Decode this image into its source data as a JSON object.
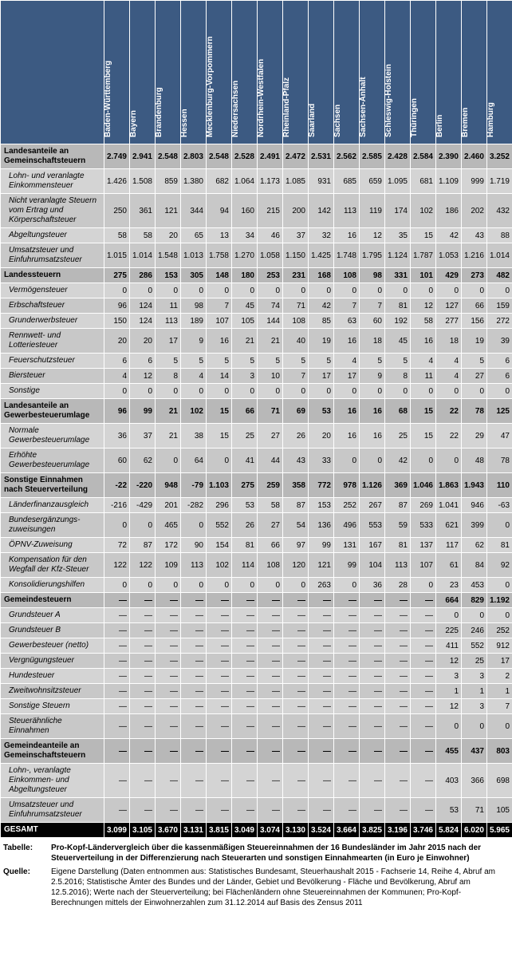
{
  "colors": {
    "header_bg": "#3c5a82",
    "header_fg": "#ffffff",
    "section_bg": "#b8b8b8",
    "detail_bg": "#d4d4d4",
    "alt_bg": "#c8c8c8",
    "total_bg": "#000000",
    "total_fg": "#ffffff",
    "border": "#ffffff"
  },
  "columns": [
    "Baden-Württemberg",
    "Bayern",
    "Brandenburg",
    "Hessen",
    "Mecklenburg-Vorpommern",
    "Niedersachsen",
    "Nordrhein-Westfalen",
    "Rheinland-Pfalz",
    "Saarland",
    "Sachsen",
    "Sachsen-Anhalt",
    "Schleswig-Holstein",
    "Thüringen",
    "Berlin",
    "Bremen",
    "Hamburg"
  ],
  "rows": [
    {
      "type": "section",
      "label": "Landesanteile an Gemeinschaftsteuern",
      "vals": [
        "2.749",
        "2.941",
        "2.548",
        "2.803",
        "2.548",
        "2.528",
        "2.491",
        "2.472",
        "2.531",
        "2.562",
        "2.585",
        "2.428",
        "2.584",
        "2.390",
        "2.460",
        "3.252"
      ]
    },
    {
      "type": "detail",
      "indent": true,
      "label": "Lohn- und veranlagte Einkommensteuer",
      "vals": [
        "1.426",
        "1.508",
        "859",
        "1.380",
        "682",
        "1.064",
        "1.173",
        "1.085",
        "931",
        "685",
        "659",
        "1.095",
        "681",
        "1.109",
        "999",
        "1.719"
      ]
    },
    {
      "type": "detail",
      "indent": true,
      "label": "Nicht veranlagte Steuern vom Ertrag und Körperschaftsteuer",
      "vals": [
        "250",
        "361",
        "121",
        "344",
        "94",
        "160",
        "215",
        "200",
        "142",
        "113",
        "119",
        "174",
        "102",
        "186",
        "202",
        "432"
      ]
    },
    {
      "type": "detail",
      "indent": true,
      "label": "Abgeltungsteuer",
      "vals": [
        "58",
        "58",
        "20",
        "65",
        "13",
        "34",
        "46",
        "37",
        "32",
        "16",
        "12",
        "35",
        "15",
        "42",
        "43",
        "88"
      ]
    },
    {
      "type": "detail",
      "indent": true,
      "label": "Umsatzsteuer und Einfuhrumsatzsteuer",
      "vals": [
        "1.015",
        "1.014",
        "1.548",
        "1.013",
        "1.758",
        "1.270",
        "1.058",
        "1.150",
        "1.425",
        "1.748",
        "1.795",
        "1.124",
        "1.787",
        "1.053",
        "1.216",
        "1.014"
      ]
    },
    {
      "type": "section",
      "label": "Landessteuern",
      "vals": [
        "275",
        "286",
        "153",
        "305",
        "148",
        "180",
        "253",
        "231",
        "168",
        "108",
        "98",
        "331",
        "101",
        "429",
        "273",
        "482"
      ]
    },
    {
      "type": "detail",
      "indent": true,
      "label": "Vermögensteuer",
      "vals": [
        "0",
        "0",
        "0",
        "0",
        "0",
        "0",
        "0",
        "0",
        "0",
        "0",
        "0",
        "0",
        "0",
        "0",
        "0",
        "0"
      ]
    },
    {
      "type": "detail",
      "indent": true,
      "label": "Erbschaftsteuer",
      "vals": [
        "96",
        "124",
        "11",
        "98",
        "7",
        "45",
        "74",
        "71",
        "42",
        "7",
        "7",
        "81",
        "12",
        "127",
        "66",
        "159"
      ]
    },
    {
      "type": "detail",
      "indent": true,
      "label": "Grunderwerbsteuer",
      "vals": [
        "150",
        "124",
        "113",
        "189",
        "107",
        "105",
        "144",
        "108",
        "85",
        "63",
        "60",
        "192",
        "58",
        "277",
        "156",
        "272"
      ]
    },
    {
      "type": "detail",
      "indent": true,
      "label": "Rennwett- und Lotteriesteuer",
      "vals": [
        "20",
        "20",
        "17",
        "9",
        "16",
        "21",
        "21",
        "40",
        "19",
        "16",
        "18",
        "45",
        "16",
        "18",
        "19",
        "39"
      ]
    },
    {
      "type": "detail",
      "indent": true,
      "label": "Feuerschutzsteuer",
      "vals": [
        "6",
        "6",
        "5",
        "5",
        "5",
        "5",
        "5",
        "5",
        "5",
        "4",
        "5",
        "5",
        "4",
        "4",
        "5",
        "6"
      ]
    },
    {
      "type": "detail",
      "indent": true,
      "label": "Biersteuer",
      "vals": [
        "4",
        "12",
        "8",
        "4",
        "14",
        "3",
        "10",
        "7",
        "17",
        "17",
        "9",
        "8",
        "11",
        "4",
        "27",
        "6"
      ]
    },
    {
      "type": "detail",
      "indent": true,
      "label": "Sonstige",
      "vals": [
        "0",
        "0",
        "0",
        "0",
        "0",
        "0",
        "0",
        "0",
        "0",
        "0",
        "0",
        "0",
        "0",
        "0",
        "0",
        "0"
      ]
    },
    {
      "type": "section",
      "label": "Landesanteile an Gewerbesteuerumlage",
      "vals": [
        "96",
        "99",
        "21",
        "102",
        "15",
        "66",
        "71",
        "69",
        "53",
        "16",
        "16",
        "68",
        "15",
        "22",
        "78",
        "125"
      ]
    },
    {
      "type": "detail",
      "indent": true,
      "label": "Normale Gewerbesteuerumlage",
      "vals": [
        "36",
        "37",
        "21",
        "38",
        "15",
        "25",
        "27",
        "26",
        "20",
        "16",
        "16",
        "25",
        "15",
        "22",
        "29",
        "47"
      ]
    },
    {
      "type": "detail",
      "indent": true,
      "label": "Erhöhte Gewerbesteuerumlage",
      "vals": [
        "60",
        "62",
        "0",
        "64",
        "0",
        "41",
        "44",
        "43",
        "33",
        "0",
        "0",
        "42",
        "0",
        "0",
        "48",
        "78"
      ]
    },
    {
      "type": "section",
      "label": "Sonstige Einnahmen nach Steuerverteilung",
      "vals": [
        "-22",
        "-220",
        "948",
        "-79",
        "1.103",
        "275",
        "259",
        "358",
        "772",
        "978",
        "1.126",
        "369",
        "1.046",
        "1.863",
        "1.943",
        "110"
      ]
    },
    {
      "type": "detail",
      "indent": true,
      "label": "Länderfinanzausgleich",
      "vals": [
        "-216",
        "-429",
        "201",
        "-282",
        "296",
        "53",
        "58",
        "87",
        "153",
        "252",
        "267",
        "87",
        "269",
        "1.041",
        "946",
        "-63"
      ]
    },
    {
      "type": "detail",
      "indent": true,
      "label": "Bundesergänzungs-zuweisungen",
      "vals": [
        "0",
        "0",
        "465",
        "0",
        "552",
        "26",
        "27",
        "54",
        "136",
        "496",
        "553",
        "59",
        "533",
        "621",
        "399",
        "0"
      ]
    },
    {
      "type": "detail",
      "indent": true,
      "label": "ÖPNV-Zuweisung",
      "vals": [
        "72",
        "87",
        "172",
        "90",
        "154",
        "81",
        "66",
        "97",
        "99",
        "131",
        "167",
        "81",
        "137",
        "117",
        "62",
        "81"
      ]
    },
    {
      "type": "detail",
      "indent": true,
      "label": "Kompensation für den Wegfall der Kfz-Steuer",
      "vals": [
        "122",
        "122",
        "109",
        "113",
        "102",
        "114",
        "108",
        "120",
        "121",
        "99",
        "104",
        "113",
        "107",
        "61",
        "84",
        "92"
      ]
    },
    {
      "type": "detail",
      "indent": true,
      "label": "Konsolidierungshilfen",
      "vals": [
        "0",
        "0",
        "0",
        "0",
        "0",
        "0",
        "0",
        "0",
        "263",
        "0",
        "36",
        "28",
        "0",
        "23",
        "453",
        "0"
      ]
    },
    {
      "type": "section",
      "label": "Gemeindesteuern",
      "vals": [
        "—",
        "—",
        "—",
        "—",
        "—",
        "—",
        "—",
        "—",
        "—",
        "—",
        "—",
        "—",
        "—",
        "664",
        "829",
        "1.192"
      ]
    },
    {
      "type": "detail",
      "indent": true,
      "label": "Grundsteuer A",
      "vals": [
        "—",
        "—",
        "—",
        "—",
        "—",
        "—",
        "—",
        "—",
        "—",
        "—",
        "—",
        "—",
        "—",
        "0",
        "0",
        "0"
      ]
    },
    {
      "type": "detail",
      "indent": true,
      "label": "Grundsteuer B",
      "vals": [
        "—",
        "—",
        "—",
        "—",
        "—",
        "—",
        "—",
        "—",
        "—",
        "—",
        "—",
        "—",
        "—",
        "225",
        "246",
        "252"
      ]
    },
    {
      "type": "detail",
      "indent": true,
      "label": "Gewerbesteuer (netto)",
      "vals": [
        "—",
        "—",
        "—",
        "—",
        "—",
        "—",
        "—",
        "—",
        "—",
        "—",
        "—",
        "—",
        "—",
        "411",
        "552",
        "912"
      ]
    },
    {
      "type": "detail",
      "indent": true,
      "label": "Vergnügungsteuer",
      "vals": [
        "—",
        "—",
        "—",
        "—",
        "—",
        "—",
        "—",
        "—",
        "—",
        "—",
        "—",
        "—",
        "—",
        "12",
        "25",
        "17"
      ]
    },
    {
      "type": "detail",
      "indent": true,
      "label": "Hundesteuer",
      "vals": [
        "—",
        "—",
        "—",
        "—",
        "—",
        "—",
        "—",
        "—",
        "—",
        "—",
        "—",
        "—",
        "—",
        "3",
        "3",
        "2"
      ]
    },
    {
      "type": "detail",
      "indent": true,
      "label": "Zweitwohnsitzsteuer",
      "vals": [
        "—",
        "—",
        "—",
        "—",
        "—",
        "—",
        "—",
        "—",
        "—",
        "—",
        "—",
        "—",
        "—",
        "1",
        "1",
        "1"
      ]
    },
    {
      "type": "detail",
      "indent": true,
      "label": "Sonstige Steuern",
      "vals": [
        "—",
        "—",
        "—",
        "—",
        "—",
        "—",
        "—",
        "—",
        "—",
        "—",
        "—",
        "—",
        "—",
        "12",
        "3",
        "7"
      ]
    },
    {
      "type": "detail",
      "indent": true,
      "label": "Steuerähnliche Einnahmen",
      "vals": [
        "—",
        "—",
        "—",
        "—",
        "—",
        "—",
        "—",
        "—",
        "—",
        "—",
        "—",
        "—",
        "—",
        "0",
        "0",
        "0"
      ]
    },
    {
      "type": "section",
      "label": "Gemeindeanteile an Gemeinschaftsteuern",
      "vals": [
        "—",
        "—",
        "—",
        "—",
        "—",
        "—",
        "—",
        "—",
        "—",
        "—",
        "—",
        "—",
        "—",
        "455",
        "437",
        "803"
      ]
    },
    {
      "type": "detail",
      "indent": true,
      "label": "Lohn-, veranlagte Einkommen- und Abgeltungsteuer",
      "vals": [
        "—",
        "—",
        "—",
        "—",
        "—",
        "—",
        "—",
        "—",
        "—",
        "—",
        "—",
        "—",
        "—",
        "403",
        "366",
        "698"
      ]
    },
    {
      "type": "detail",
      "indent": true,
      "label": "Umsatzsteuer und Einfuhrumsatzsteuer",
      "vals": [
        "—",
        "—",
        "—",
        "—",
        "—",
        "—",
        "—",
        "—",
        "—",
        "—",
        "—",
        "—",
        "—",
        "53",
        "71",
        "105"
      ]
    },
    {
      "type": "total",
      "label": "GESAMT",
      "vals": [
        "3.099",
        "3.105",
        "3.670",
        "3.131",
        "3.815",
        "3.049",
        "3.074",
        "3.130",
        "3.524",
        "3.664",
        "3.825",
        "3.196",
        "3.746",
        "5.824",
        "6.020",
        "5.965"
      ]
    }
  ],
  "footer": {
    "table_label": "Tabelle:",
    "table_text": "Pro-Kopf-Ländervergleich über die kassenmäßigen Steuereinnahmen der 16 Bundesländer im Jahr 2015 nach der Steuerverteilung in der Differenzierung nach Steuerarten und sonstigen Einnahmearten (in Euro je Einwohner)",
    "source_label": "Quelle:",
    "source_text": "Eigene Darstellung (Daten entnommen aus: Statistisches Bundesamt, Steuerhaushalt 2015 - Fachserie 14, Reihe 4, Abruf am 2.5.2016;  Statistische Ämter des Bundes und der Länder, Gebiet und Bevölkerung - Fläche und Bevölkerung, Abruf am 12.5.2016);  Werte nach der Steuerverteilung; bei Flächenländern ohne Steuereinnahmen der Kommunen; Pro-Kopf-Berechnungen mittels der Einwohnerzahlen zum 31.12.2014 auf Basis des Zensus 2011"
  }
}
